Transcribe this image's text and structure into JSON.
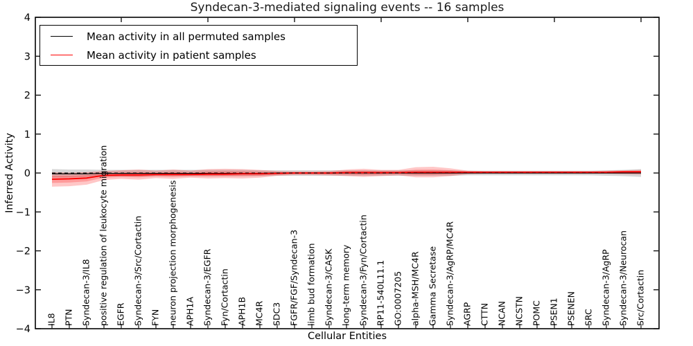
{
  "figure": {
    "title": "Syndecan-3-mediated signaling events -- 16 samples",
    "xlabel": "Cellular Entities",
    "ylabel": "Inferred Activity"
  },
  "legend": {
    "entries": [
      {
        "label": "Mean activity in all permuted samples",
        "color": "#000000"
      },
      {
        "label": "Mean activity in patient samples",
        "color": "#ff0000"
      }
    ]
  },
  "chart_data": {
    "type": "line",
    "title": "Syndecan-3-mediated signaling events -- 16 samples",
    "xlabel": "Cellular Entities",
    "ylabel": "Inferred Activity",
    "ylim": [
      -4,
      4
    ],
    "yticks": [
      4,
      3,
      2,
      1,
      0,
      -1,
      -2,
      -3,
      -4
    ],
    "grid": false,
    "legend_position": "upper left",
    "zero_line": {
      "y": 0,
      "style": "dashed",
      "color": "#000000"
    },
    "top_tick_indices": [
      4,
      9,
      14,
      19,
      24,
      29,
      34
    ],
    "categories": [
      "IL8",
      "PTN",
      "Syndecan-3/IL8",
      "positive regulation of leukocyte migration",
      "EGFR",
      "Syndecan-3/Src/Cortactin",
      "FYN",
      "neuron projection morphogenesis",
      "APH1A",
      "Syndecan-3/EGFR",
      "Fyn/Cortactin",
      "APH1B",
      "MC4R",
      "SDC3",
      "FGFR/FGF/Syndecan-3",
      "limb bud formation",
      "Syndecan-3/CASK",
      "long-term memory",
      "Syndecan-3/Fyn/Cortactin",
      "RP11-540L11.1",
      "GO:0007205",
      "alpha-MSH/MC4R",
      "Gamma Secretase",
      "Syndecan-3/AgRP/MC4R",
      "AGRP",
      "CTTN",
      "NCAN",
      "NCSTN",
      "POMC",
      "PSEN1",
      "PSENEN",
      "SRC",
      "Syndecan-3/AgRP",
      "Syndecan-3/Neurocan",
      "Src/Cortactin"
    ],
    "series": [
      {
        "name": "Mean activity in all permuted samples",
        "color": "#000000",
        "line_width": 1.2,
        "band_fill": "rgba(120,120,120,0.30)",
        "values": [
          -0.02,
          -0.02,
          -0.02,
          -0.01,
          -0.01,
          -0.01,
          -0.01,
          -0.01,
          -0.01,
          -0.01,
          -0.01,
          -0.01,
          -0.01,
          0,
          0,
          0,
          0,
          0,
          0,
          0,
          0,
          0,
          0,
          0,
          0,
          0,
          0,
          0,
          0,
          0,
          0,
          0,
          0,
          0,
          0
        ],
        "band_hi": [
          0.1,
          0.09,
          0.09,
          0.08,
          0.08,
          0.08,
          0.08,
          0.08,
          0.08,
          0.08,
          0.08,
          0.08,
          0.07,
          0.07,
          0.07,
          0.07,
          0.07,
          0.07,
          0.07,
          0.07,
          0.07,
          0.07,
          0.07,
          0.07,
          0.06,
          0.06,
          0.06,
          0.06,
          0.06,
          0.06,
          0.06,
          0.06,
          0.07,
          0.08,
          0.1
        ],
        "band_lo": [
          -0.12,
          -0.11,
          -0.1,
          -0.09,
          -0.09,
          -0.09,
          -0.08,
          -0.08,
          -0.08,
          -0.08,
          -0.08,
          -0.08,
          -0.08,
          -0.07,
          -0.07,
          -0.07,
          -0.07,
          -0.07,
          -0.07,
          -0.07,
          -0.07,
          -0.07,
          -0.07,
          -0.07,
          -0.06,
          -0.06,
          -0.06,
          -0.06,
          -0.06,
          -0.06,
          -0.06,
          -0.06,
          -0.07,
          -0.08,
          -0.1
        ]
      },
      {
        "name": "Mean activity in patient samples",
        "color": "#ff0000",
        "line_width": 1.8,
        "band_fill": "rgba(255,0,0,0.22)",
        "values": [
          -0.16,
          -0.15,
          -0.13,
          -0.06,
          -0.05,
          -0.05,
          -0.04,
          -0.04,
          -0.04,
          -0.03,
          -0.03,
          -0.02,
          -0.02,
          -0.01,
          0,
          0,
          0,
          0.01,
          0.01,
          0.01,
          0.01,
          0.02,
          0.02,
          0.02,
          0.02,
          0.02,
          0.02,
          0.02,
          0.02,
          0.02,
          0.02,
          0.02,
          0.02,
          0.03,
          0.03
        ],
        "band_hi": [
          0.02,
          0.01,
          0.02,
          0.05,
          0.07,
          0.09,
          0.06,
          0.09,
          0.06,
          0.1,
          0.11,
          0.1,
          0.08,
          0.05,
          0.04,
          0.04,
          0.05,
          0.09,
          0.11,
          0.08,
          0.08,
          0.15,
          0.16,
          0.12,
          0.06,
          0.05,
          0.05,
          0.05,
          0.05,
          0.05,
          0.05,
          0.05,
          0.06,
          0.07,
          0.08
        ],
        "band_lo": [
          -0.35,
          -0.34,
          -0.3,
          -0.18,
          -0.15,
          -0.17,
          -0.13,
          -0.15,
          -0.12,
          -0.14,
          -0.13,
          -0.14,
          -0.12,
          -0.07,
          -0.05,
          -0.05,
          -0.06,
          -0.08,
          -0.1,
          -0.08,
          -0.06,
          -0.11,
          -0.11,
          -0.08,
          -0.03,
          -0.02,
          -0.02,
          -0.02,
          -0.02,
          -0.02,
          -0.02,
          -0.02,
          -0.02,
          -0.03,
          -0.04
        ]
      }
    ]
  }
}
